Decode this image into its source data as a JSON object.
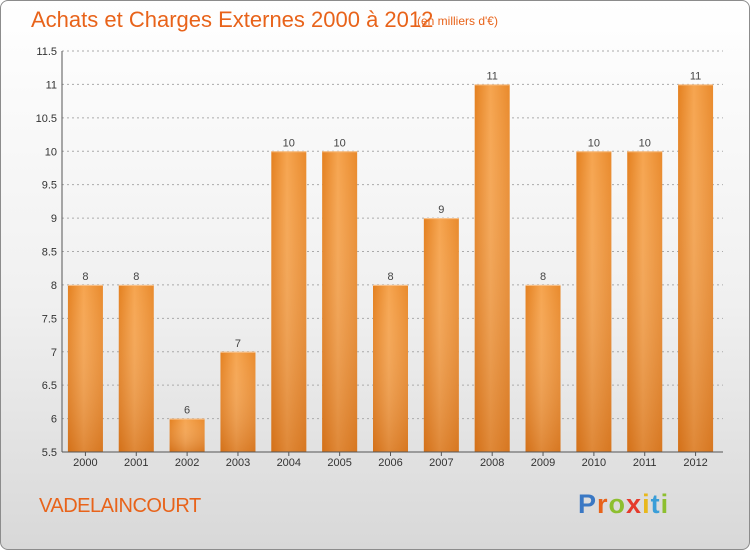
{
  "header": {
    "title": "Achats et Charges Externes 2000 à 2012",
    "unit": "(en milliers d'€)"
  },
  "footer": {
    "city": "VADELAINCOURT",
    "logo_letters": [
      "P",
      "r",
      "o",
      "x",
      "i",
      "t",
      "i"
    ],
    "logo_colors": [
      "#3a78c4",
      "#e8631a",
      "#8dbf2f",
      "#e53a2c",
      "#e8b81c",
      "#3a9ed8",
      "#8dbf2f"
    ]
  },
  "colors": {
    "bar": "#f08c33",
    "bar_light": "#f6a75a",
    "bar_dark": "#d96f19",
    "grid": "#aaaaaa",
    "accent": "#e8631a"
  },
  "chart_data": {
    "type": "bar",
    "categories": [
      "2000",
      "2001",
      "2002",
      "2003",
      "2004",
      "2005",
      "2006",
      "2007",
      "2008",
      "2009",
      "2010",
      "2011",
      "2012"
    ],
    "values": [
      8,
      8,
      6,
      7,
      10,
      10,
      8,
      9,
      11,
      8,
      10,
      10,
      11
    ],
    "data_labels": [
      "8",
      "8",
      "6",
      "7",
      "10",
      "10",
      "8",
      "9",
      "11",
      "8",
      "10",
      "10",
      "11"
    ],
    "yticks": [
      "5.5",
      "6",
      "6.5",
      "7",
      "7.5",
      "8",
      "8.5",
      "9",
      "9.5",
      "10",
      "10.5",
      "11",
      "11.5"
    ],
    "ylim": [
      5.5,
      11.5
    ],
    "grid": true,
    "title": "Achats et Charges Externes 2000 à 2012",
    "xlabel": "",
    "ylabel": ""
  }
}
